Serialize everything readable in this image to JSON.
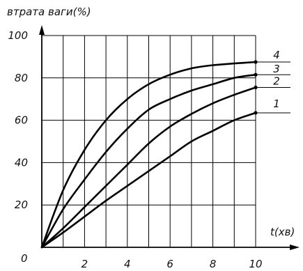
{
  "chart_data": {
    "type": "line",
    "ylabel": "втрата ваги(%)",
    "xlabel": "t(хв)",
    "origin_label": "0",
    "xlim": [
      0,
      10
    ],
    "ylim": [
      0,
      100
    ],
    "x_ticks": [
      2,
      4,
      6,
      8,
      10
    ],
    "y_ticks": [
      20,
      40,
      60,
      80,
      100
    ],
    "grid": true,
    "series": [
      {
        "name": "1",
        "x": [
          0,
          1,
          2,
          3,
          4,
          5,
          6,
          7,
          8,
          9,
          10
        ],
        "values": [
          0,
          7,
          14.5,
          22,
          29,
          36,
          43,
          50,
          55,
          60,
          63.5
        ]
      },
      {
        "name": "2",
        "x": [
          0,
          1,
          2,
          3,
          4,
          5,
          6,
          7,
          8,
          9,
          10
        ],
        "values": [
          0,
          9,
          19,
          29,
          39,
          49,
          57,
          63,
          68,
          72,
          75.5
        ]
      },
      {
        "name": "3",
        "x": [
          0,
          1,
          2,
          3,
          4,
          5,
          6,
          7,
          8,
          9,
          10
        ],
        "values": [
          0,
          18,
          32,
          45,
          56,
          65,
          70,
          74,
          77,
          80,
          81.5
        ]
      },
      {
        "name": "4",
        "x": [
          0,
          1,
          2,
          3,
          4,
          5,
          6,
          7,
          8,
          9,
          10
        ],
        "values": [
          0,
          27,
          46,
          60,
          70,
          77,
          81.5,
          84.5,
          86,
          86.8,
          87.5
        ]
      }
    ]
  }
}
